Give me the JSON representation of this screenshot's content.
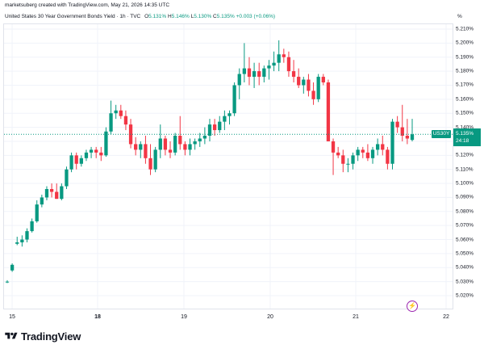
{
  "credit": "marketsuberg created with TradingView.com, May 21, 2026 14:35 UTC",
  "header": {
    "symbol": "United States 30 Year Government Bonds Yield · 1h · TVC",
    "open_label": "O",
    "open": "5.131%",
    "high_label": "H",
    "high": "5.146%",
    "low_label": "L",
    "low": "5.130%",
    "close_label": "C",
    "close": "5.135%",
    "change": "+0.003 (+0.06%)"
  },
  "axis": {
    "unit": "%",
    "y_ticks": [
      "5.210%",
      "5.200%",
      "5.190%",
      "5.180%",
      "5.170%",
      "5.160%",
      "5.150%",
      "5.140%",
      "5.130%",
      "5.120%",
      "5.110%",
      "5.100%",
      "5.090%",
      "5.080%",
      "5.070%",
      "5.060%",
      "5.050%",
      "5.040%",
      "5.030%",
      "5.020%"
    ],
    "x_ticks": [
      {
        "label": "15",
        "bold": false
      },
      {
        "label": "18",
        "bold": true
      },
      {
        "label": "19",
        "bold": false
      },
      {
        "label": "20",
        "bold": false
      },
      {
        "label": "21",
        "bold": false
      },
      {
        "label": "22",
        "bold": false
      }
    ]
  },
  "price_tag": {
    "symbol": "US30Y",
    "value": "5.135%",
    "countdown": "24:18",
    "color": "#089981"
  },
  "colors": {
    "up": "#089981",
    "down": "#f23645",
    "grid": "#f0f3fa"
  },
  "branding": {
    "name": "TradingView",
    "icon": "tradingview-logo-icon"
  },
  "chart_data": {
    "type": "candlestick",
    "ylim": [
      5.015,
      5.215
    ],
    "candles": [
      [
        5.03,
        5.031,
        5.029,
        5.03
      ],
      [
        5.038,
        5.043,
        5.037,
        5.042
      ],
      [
        5.057,
        5.062,
        5.056,
        5.058
      ],
      [
        5.058,
        5.063,
        5.055,
        5.06
      ],
      [
        5.06,
        5.068,
        5.058,
        5.066
      ],
      [
        5.066,
        5.075,
        5.065,
        5.073
      ],
      [
        5.073,
        5.088,
        5.072,
        5.085
      ],
      [
        5.085,
        5.092,
        5.083,
        5.09
      ],
      [
        5.09,
        5.098,
        5.088,
        5.096
      ],
      [
        5.096,
        5.1,
        5.09,
        5.094
      ],
      [
        5.094,
        5.1,
        5.089,
        5.089
      ],
      [
        5.089,
        5.1,
        5.088,
        5.098
      ],
      [
        5.098,
        5.112,
        5.096,
        5.11
      ],
      [
        5.11,
        5.122,
        5.108,
        5.12
      ],
      [
        5.12,
        5.122,
        5.11,
        5.114
      ],
      [
        5.114,
        5.12,
        5.112,
        5.118
      ],
      [
        5.118,
        5.124,
        5.116,
        5.122
      ],
      [
        5.122,
        5.126,
        5.118,
        5.124
      ],
      [
        5.124,
        5.126,
        5.118,
        5.122
      ],
      [
        5.122,
        5.126,
        5.116,
        5.12
      ],
      [
        5.12,
        5.14,
        5.119,
        5.137
      ],
      [
        5.137,
        5.159,
        5.135,
        5.15
      ],
      [
        5.15,
        5.156,
        5.146,
        5.152
      ],
      [
        5.152,
        5.156,
        5.146,
        5.148
      ],
      [
        5.148,
        5.152,
        5.138,
        5.142
      ],
      [
        5.142,
        5.146,
        5.125,
        5.128
      ],
      [
        5.128,
        5.133,
        5.12,
        5.124
      ],
      [
        5.124,
        5.13,
        5.118,
        5.128
      ],
      [
        5.128,
        5.134,
        5.114,
        5.118
      ],
      [
        5.118,
        5.128,
        5.106,
        5.11
      ],
      [
        5.11,
        5.126,
        5.108,
        5.124
      ],
      [
        5.124,
        5.142,
        5.118,
        5.132
      ],
      [
        5.132,
        5.134,
        5.12,
        5.124
      ],
      [
        5.124,
        5.13,
        5.118,
        5.122
      ],
      [
        5.122,
        5.136,
        5.12,
        5.134
      ],
      [
        5.134,
        5.148,
        5.124,
        5.128
      ],
      [
        5.128,
        5.13,
        5.12,
        5.124
      ],
      [
        5.124,
        5.132,
        5.12,
        5.128
      ],
      [
        5.128,
        5.132,
        5.124,
        5.13
      ],
      [
        5.13,
        5.136,
        5.126,
        5.132
      ],
      [
        5.132,
        5.14,
        5.128,
        5.134
      ],
      [
        5.134,
        5.146,
        5.13,
        5.142
      ],
      [
        5.142,
        5.146,
        5.134,
        5.138
      ],
      [
        5.138,
        5.148,
        5.136,
        5.144
      ],
      [
        5.144,
        5.152,
        5.138,
        5.148
      ],
      [
        5.148,
        5.152,
        5.142,
        5.15
      ],
      [
        5.15,
        5.172,
        5.148,
        5.17
      ],
      [
        5.17,
        5.182,
        5.16,
        5.178
      ],
      [
        5.178,
        5.2,
        5.172,
        5.182
      ],
      [
        5.182,
        5.19,
        5.17,
        5.176
      ],
      [
        5.176,
        5.186,
        5.168,
        5.18
      ],
      [
        5.18,
        5.186,
        5.17,
        5.176
      ],
      [
        5.176,
        5.184,
        5.172,
        5.182
      ],
      [
        5.182,
        5.188,
        5.174,
        5.184
      ],
      [
        5.184,
        5.194,
        5.18,
        5.186
      ],
      [
        5.186,
        5.202,
        5.18,
        5.192
      ],
      [
        5.192,
        5.196,
        5.186,
        5.19
      ],
      [
        5.19,
        5.194,
        5.176,
        5.18
      ],
      [
        5.18,
        5.188,
        5.172,
        5.176
      ],
      [
        5.176,
        5.182,
        5.168,
        5.17
      ],
      [
        5.17,
        5.176,
        5.164,
        5.174
      ],
      [
        5.174,
        5.178,
        5.162,
        5.166
      ],
      [
        5.166,
        5.172,
        5.156,
        5.16
      ],
      [
        5.16,
        5.178,
        5.158,
        5.176
      ],
      [
        5.176,
        5.178,
        5.17,
        5.172
      ],
      [
        5.172,
        5.174,
        5.13,
        5.13
      ],
      [
        5.13,
        5.132,
        5.106,
        5.122
      ],
      [
        5.122,
        5.126,
        5.118,
        5.12
      ],
      [
        5.12,
        5.124,
        5.108,
        5.114
      ],
      [
        5.114,
        5.118,
        5.108,
        5.114
      ],
      [
        5.114,
        5.122,
        5.11,
        5.12
      ],
      [
        5.12,
        5.126,
        5.116,
        5.124
      ],
      [
        5.124,
        5.126,
        5.118,
        5.122
      ],
      [
        5.122,
        5.128,
        5.116,
        5.118
      ],
      [
        5.118,
        5.126,
        5.114,
        5.124
      ],
      [
        5.124,
        5.132,
        5.12,
        5.128
      ],
      [
        5.128,
        5.134,
        5.12,
        5.124
      ],
      [
        5.124,
        5.126,
        5.11,
        5.114
      ],
      [
        5.114,
        5.146,
        5.11,
        5.144
      ],
      [
        5.144,
        5.148,
        5.136,
        5.14
      ],
      [
        5.14,
        5.156,
        5.13,
        5.134
      ],
      [
        5.134,
        5.146,
        5.128,
        5.132
      ],
      [
        5.131,
        5.146,
        5.13,
        5.135
      ]
    ]
  }
}
